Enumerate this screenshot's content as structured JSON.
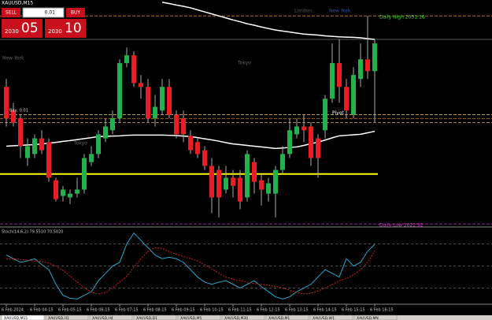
{
  "window": {
    "title": "XAUUSD,M15",
    "trade": {
      "sell": "SELL",
      "buy": "BUY",
      "lot": "0.01",
      "sell_big": "2030",
      "sell_pts": "05",
      "buy_big": "2030",
      "buy_pts": "10"
    },
    "sessions": [
      "London",
      "New York",
      "New York",
      "Tokyo",
      "Tokyo"
    ],
    "order": "Buy, 0.01",
    "tabs": [
      "XAUUSD,M15",
      "XAUUSD,H1",
      "XAUUSD,H4",
      "XAUUSD,D1",
      "XAUUSD,M5",
      "XAUUSD,M30",
      "XAUUSD,M1",
      "XAUUSD,W1",
      "XAUUSD,MN"
    ]
  },
  "chart_data": [
    {
      "type": "candlestick",
      "ylim": [
        2022.83,
        2031.79
      ],
      "up_color": "#22b14c",
      "down_color": "#ed1c24",
      "ohlc": [
        [
          2028.35,
          2028.66,
          2026.78,
          2027.1
        ],
        [
          2027.41,
          2027.72,
          2026.78,
          2026.94
        ],
        [
          2027.1,
          2027.25,
          2025.53,
          2026.0
        ],
        [
          2025.53,
          2026.31,
          2025.22,
          2026.0
        ],
        [
          2025.69,
          2026.47,
          2025.53,
          2026.31
        ],
        [
          2026.31,
          2026.63,
          2025.69,
          2025.84
        ],
        [
          2026.16,
          2026.31,
          2024.59,
          2024.75
        ],
        [
          2024.65,
          2024.75,
          2023.81,
          2023.9
        ],
        [
          2024.03,
          2024.43,
          2023.81,
          2024.28
        ],
        [
          2023.97,
          2024.28,
          2023.71,
          2024.12
        ],
        [
          2024.12,
          2024.75,
          2023.97,
          2024.28
        ],
        [
          2024.28,
          2025.69,
          2024.12,
          2025.53
        ],
        [
          2025.37,
          2026.0,
          2025.22,
          2025.69
        ],
        [
          2025.69,
          2026.63,
          2025.53,
          2026.47
        ],
        [
          2026.31,
          2027.1,
          2026.16,
          2026.78
        ],
        [
          2026.63,
          2027.41,
          2026.47,
          2027.1
        ],
        [
          2027.1,
          2029.44,
          2026.94,
          2029.29
        ],
        [
          2029.29,
          2029.91,
          2029.13,
          2029.6
        ],
        [
          2029.6,
          2029.76,
          2028.35,
          2028.5
        ],
        [
          2028.5,
          2028.82,
          2027.88,
          2028.35
        ],
        [
          2028.35,
          2028.66,
          2026.94,
          2027.1
        ],
        [
          2027.1,
          2028.03,
          2026.78,
          2027.56
        ],
        [
          2027.41,
          2028.66,
          2027.25,
          2028.35
        ],
        [
          2028.35,
          2028.66,
          2027.1,
          2027.25
        ],
        [
          2027.25,
          2027.41,
          2026.31,
          2026.47
        ],
        [
          2027.1,
          2027.41,
          2026.16,
          2026.47
        ],
        [
          2026.41,
          2026.63,
          2025.69,
          2025.84
        ],
        [
          2026.16,
          2026.31,
          2025.53,
          2025.69
        ],
        [
          2025.84,
          2026.0,
          2025.06,
          2025.22
        ],
        [
          2025.22,
          2025.53,
          2023.34,
          2023.97
        ],
        [
          2025.06,
          2025.22,
          2023.18,
          2023.97
        ],
        [
          2024.28,
          2025.22,
          2024.12,
          2024.75
        ],
        [
          2024.75,
          2025.06,
          2023.97,
          2024.43
        ],
        [
          2024.75,
          2025.06,
          2023.5,
          2023.81
        ],
        [
          2023.97,
          2025.84,
          2023.81,
          2025.69
        ],
        [
          2025.37,
          2025.53,
          2024.12,
          2024.59
        ],
        [
          2024.65,
          2024.9,
          2023.65,
          2024.28
        ],
        [
          2024.12,
          2024.75,
          2023.81,
          2024.53
        ],
        [
          2024.12,
          2025.22,
          2023.18,
          2025.06
        ],
        [
          2025.06,
          2026.0,
          2024.9,
          2025.69
        ],
        [
          2025.69,
          2027.1,
          2025.53,
          2026.63
        ],
        [
          2026.47,
          2027.1,
          2026.31,
          2026.78
        ],
        [
          2026.78,
          2027.25,
          2026.16,
          2026.63
        ],
        [
          2026.78,
          2026.94,
          2025.22,
          2025.53
        ],
        [
          2026.31,
          2026.47,
          2024.75,
          2025.53
        ],
        [
          2026.63,
          2028.03,
          2026.31,
          2027.88
        ],
        [
          2027.88,
          2030.07,
          2027.72,
          2029.29
        ],
        [
          2029.29,
          2030.23,
          2027.72,
          2028.35
        ],
        [
          2028.35,
          2028.66,
          2027.1,
          2027.41
        ],
        [
          2027.25,
          2029.13,
          2027.1,
          2028.82
        ],
        [
          2028.66,
          2030.07,
          2028.35,
          2029.44
        ],
        [
          2029.44,
          2031.16,
          2028.66,
          2028.97
        ],
        [
          2028.97,
          2030.23,
          2026.94,
          2030.07
        ]
      ],
      "lines": [
        {
          "color": "#ffffff",
          "values": [
            2026.0,
            2026.02,
            2026.03,
            2026.05,
            2026.06,
            2026.09,
            2026.12,
            2026.15,
            2026.19,
            2026.22,
            2026.26,
            2026.3,
            2026.34,
            2026.38,
            2026.39,
            2026.4,
            2026.41,
            2026.43,
            2026.44,
            2026.44,
            2026.44,
            2026.44,
            2026.44,
            2026.43,
            2026.42,
            2026.4,
            2026.38,
            2026.34,
            2026.29,
            2026.25,
            2026.2,
            2026.14,
            2026.09,
            2026.06,
            2026.03,
            2026.0,
            2025.97,
            2025.94,
            2025.91,
            2025.93,
            2025.95,
            2025.97,
            2026.03,
            2026.1,
            2026.16,
            2026.24,
            2026.33,
            2026.41,
            2026.43,
            2026.45,
            2026.47,
            2026.53,
            2026.59
          ]
        },
        {
          "color": "#ffffff",
          "values": [
            null,
            null,
            null,
            null,
            null,
            null,
            null,
            null,
            null,
            null,
            null,
            null,
            null,
            null,
            null,
            null,
            null,
            null,
            null,
            null,
            null,
            null,
            2031.7,
            2031.65,
            2031.59,
            2031.54,
            2031.48,
            2031.4,
            2031.32,
            2031.24,
            2031.16,
            2031.08,
            2031.0,
            2030.93,
            2030.85,
            2030.79,
            2030.72,
            2030.66,
            2030.6,
            2030.56,
            2030.52,
            2030.48,
            2030.44,
            2030.42,
            2030.4,
            2030.37,
            2030.35,
            2030.33,
            2030.32,
            2030.31,
            2030.29,
            2030.26,
            2030.23
          ]
        }
      ],
      "levels": [
        {
          "value": 2031.16,
          "label": "Daily High 2031.16",
          "color": "#e07b20",
          "label_color": "#33dd33",
          "dash": true
        },
        {
          "value": 2030.23,
          "color": "#777777",
          "dash": false
        },
        {
          "value": 2027.25,
          "label": "Pivot",
          "color": "#c8b070",
          "label_color": "#ffffff",
          "dash": true
        },
        {
          "value": 2027.1,
          "color": "#e07b20",
          "dash": true
        },
        {
          "value": 2026.94,
          "color": "#c8b070",
          "dash": true
        },
        {
          "value": 2024.9,
          "color": "#ffff00",
          "dash": false
        },
        {
          "value": 2022.92,
          "label": "Daily Low 2022.92",
          "color": "#cc33cc",
          "label_color": "#cc33cc",
          "dash": true
        }
      ],
      "x_labels": [
        "6 Feb 2024",
        "6 Feb 04:15",
        "6 Feb 05:15",
        "6 Feb 06:15",
        "6 Feb 07:15",
        "6 Feb 08:15",
        "6 Feb 09:15",
        "6 Feb 10:15",
        "6 Feb 11:15",
        "6 Feb 12:15",
        "6 Feb 13:15",
        "6 Feb 14:15",
        "6 Feb 15:15",
        "6 Feb 16:15"
      ]
    },
    {
      "type": "line",
      "title": "Stoch(14,6,2) 79.5510 70.5020",
      "ylim": [
        0,
        100
      ],
      "levels": [
        80,
        50,
        20
      ],
      "series": [
        {
          "color": "#2aa7c9",
          "dash": false,
          "values": [
            65,
            60,
            55,
            57,
            60,
            52,
            45,
            25,
            10,
            6,
            5,
            10,
            15,
            30,
            40,
            50,
            55,
            80,
            95,
            85,
            75,
            65,
            60,
            62,
            60,
            55,
            45,
            35,
            28,
            25,
            28,
            30,
            25,
            20,
            25,
            30,
            22,
            15,
            8,
            5,
            8,
            15,
            20,
            25,
            35,
            45,
            40,
            35,
            60,
            50,
            55,
            70,
            79.55
          ]
        },
        {
          "color": "#cc2222",
          "dash": true,
          "values": [
            60,
            60,
            59,
            58,
            57,
            56,
            54,
            50,
            44,
            36,
            28,
            20,
            14,
            12,
            14,
            20,
            28,
            36,
            48,
            60,
            70,
            75,
            74,
            70,
            66,
            63,
            60,
            57,
            52,
            46,
            40,
            35,
            32,
            30,
            28,
            26,
            25,
            24,
            22,
            20,
            17,
            14,
            12,
            13,
            16,
            20,
            25,
            30,
            33,
            38,
            45,
            55,
            70.5
          ]
        }
      ]
    }
  ]
}
